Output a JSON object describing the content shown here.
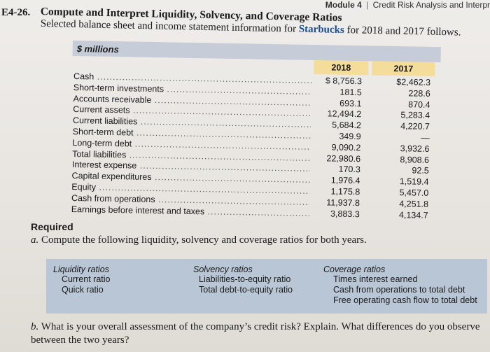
{
  "header": {
    "module": "Module 4",
    "separator": "|",
    "section": "Credit Risk Analysis and Interpr"
  },
  "exercise": {
    "number": "E4-26.",
    "title": "Compute and Interpret Liquidity, Solvency, and Coverage Ratios",
    "subtitle_prefix": "Selected balance sheet and income statement information for ",
    "company": "Starbucks",
    "subtitle_suffix": " for 2018 and 2017 follows."
  },
  "table": {
    "units": "$ millions",
    "col_2018": "2018",
    "col_2017": "2017",
    "rows": [
      {
        "label": "Cash",
        "v2018": "$ 8,756.3",
        "v2017": "$2,462.3"
      },
      {
        "label": "Short-term investments",
        "v2018": "181.5",
        "v2017": "228.6"
      },
      {
        "label": "Accounts receivable",
        "v2018": "693.1",
        "v2017": "870.4"
      },
      {
        "label": "Current assets",
        "v2018": "12,494.2",
        "v2017": "5,283.4"
      },
      {
        "label": "Current liabilities",
        "v2018": "5,684.2",
        "v2017": "4,220.7"
      },
      {
        "label": "Short-term debt",
        "v2018": "349.9",
        "v2017": "—"
      },
      {
        "label": "Long-term debt",
        "v2018": "9,090.2",
        "v2017": "3,932.6"
      },
      {
        "label": "Total liabilities",
        "v2018": "22,980.6",
        "v2017": "8,908.6"
      },
      {
        "label": "Interest expense",
        "v2018": "170.3",
        "v2017": "92.5"
      },
      {
        "label": "Capital expenditures",
        "v2018": "1,976.4",
        "v2017": "1,519.4"
      },
      {
        "label": "Equity",
        "v2018": "1,175.8",
        "v2017": "5,457.0"
      },
      {
        "label": "Cash from operations",
        "v2018": "11,937.8",
        "v2017": "4,251.8"
      },
      {
        "label": "Earnings before interest and taxes",
        "v2018": "3,883.3",
        "v2017": "4,134.7"
      }
    ]
  },
  "required": {
    "heading": "Required",
    "a_letter": "a.",
    "a_text": "Compute the following liquidity, solvency and coverage ratios for both years.",
    "b_letter": "b.",
    "b_text": "What is your overall assessment of the company’s credit risk? Explain. What differences do you observe between the two years?"
  },
  "ratios": {
    "liquidity": {
      "heading": "Liquidity ratios",
      "items": [
        "Current ratio",
        "Quick ratio"
      ]
    },
    "solvency": {
      "heading": "Solvency ratios",
      "items": [
        "Liabilities-to-equity ratio",
        "Total debt-to-equity ratio"
      ]
    },
    "coverage": {
      "heading": "Coverage ratios",
      "items": [
        "Times interest earned",
        "Cash from operations to total debt",
        "Free operating cash flow to total debt"
      ]
    }
  }
}
